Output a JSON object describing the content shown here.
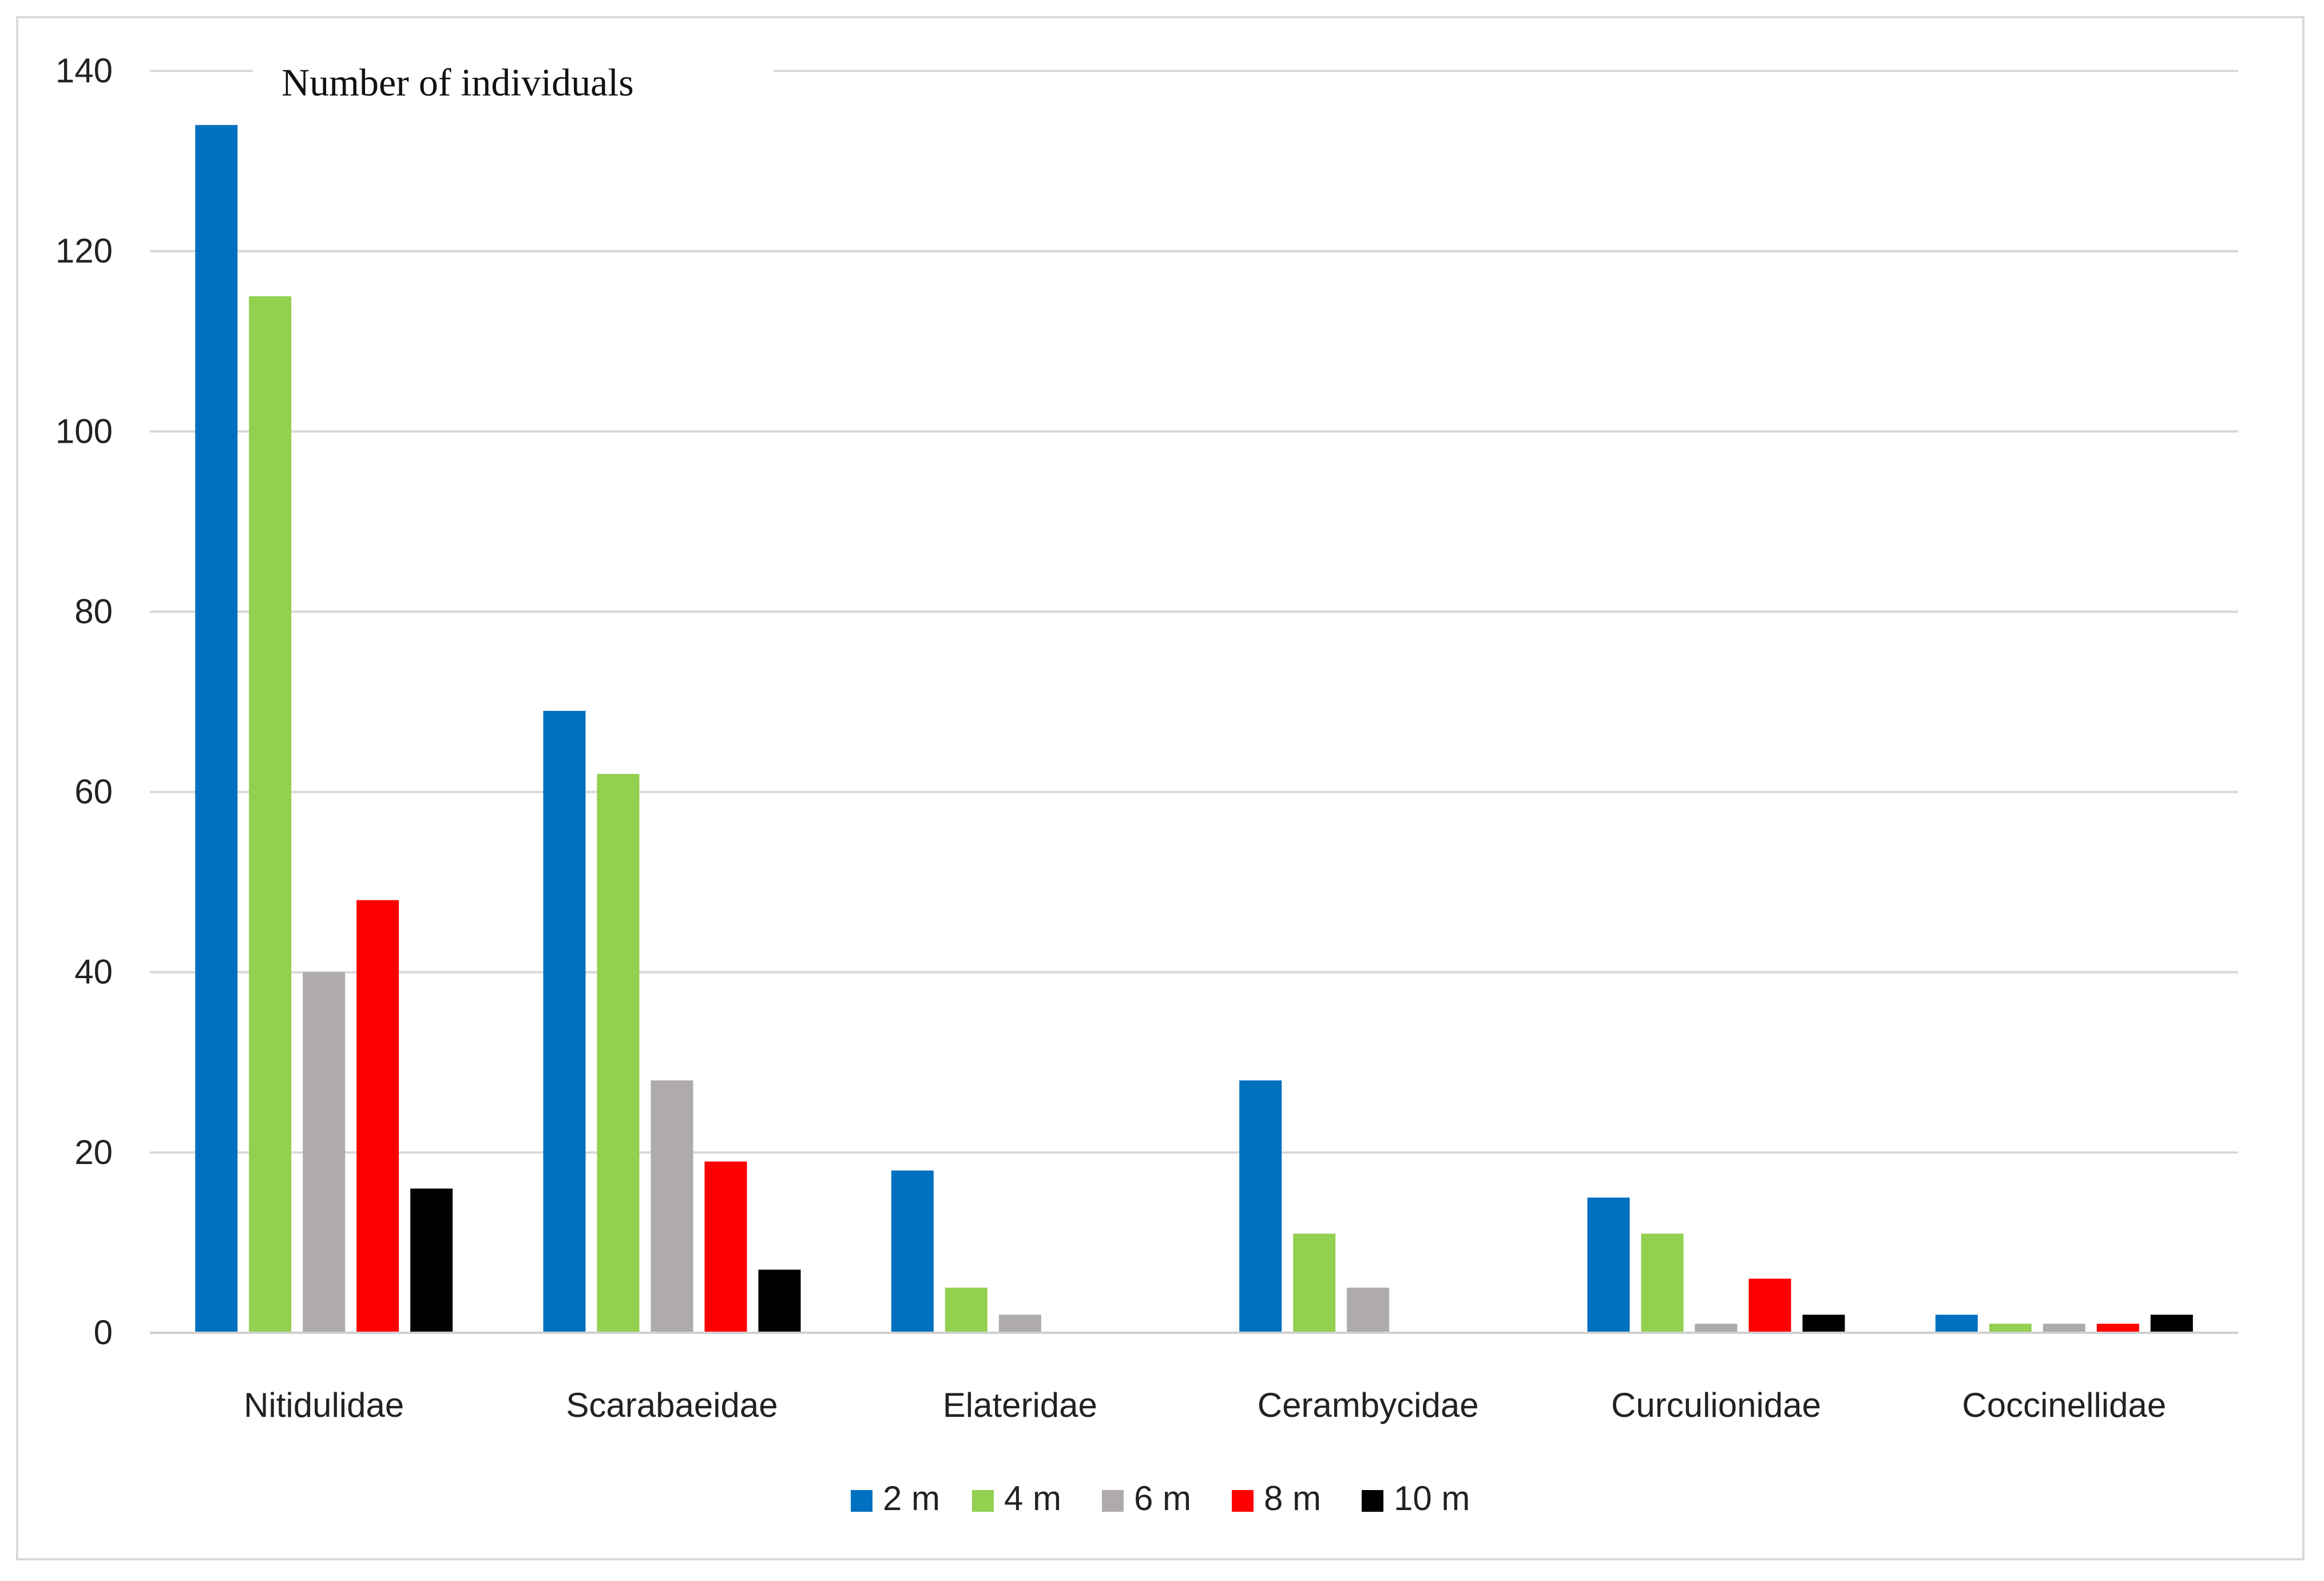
{
  "chart_data": {
    "type": "bar",
    "title": "",
    "ylabel": "Number of individuals",
    "xlabel": "",
    "ylim": [
      0,
      140
    ],
    "yticks": [
      0,
      20,
      40,
      60,
      80,
      100,
      120,
      140
    ],
    "grid": true,
    "legend_position": "bottom",
    "categories": [
      "Nitidulidae",
      "Scarabaeidae",
      "Elateridae",
      "Cerambycidae",
      "Curculionidae",
      "Coccinellidae"
    ],
    "series": [
      {
        "name": "2 m",
        "color": "#0070c0",
        "values": [
          134,
          69,
          18,
          28,
          15,
          2
        ]
      },
      {
        "name": "4 m",
        "color": "#92d050",
        "values": [
          115,
          62,
          5,
          11,
          11,
          1
        ]
      },
      {
        "name": "6 m",
        "color": "#afabab",
        "values": [
          40,
          28,
          2,
          5,
          1,
          1
        ]
      },
      {
        "name": "8 m",
        "color": "#ff0000",
        "values": [
          48,
          19,
          0,
          0,
          6,
          1
        ]
      },
      {
        "name": "10 m",
        "color": "#000000",
        "values": [
          16,
          7,
          0,
          0,
          2,
          2
        ]
      }
    ]
  }
}
